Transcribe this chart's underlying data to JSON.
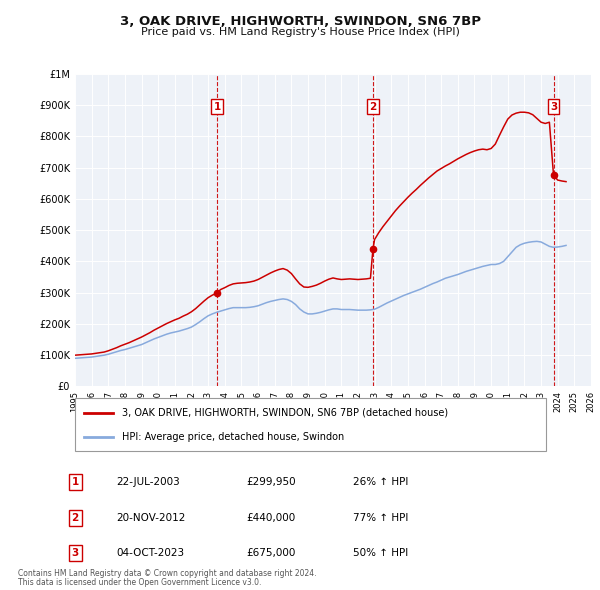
{
  "title": "3, OAK DRIVE, HIGHWORTH, SWINDON, SN6 7BP",
  "subtitle": "Price paid vs. HM Land Registry's House Price Index (HPI)",
  "background_color": "#ffffff",
  "plot_bg_color": "#eef2f8",
  "grid_color": "#ffffff",
  "ylim": [
    0,
    1000000
  ],
  "xlim_start": 1995,
  "xlim_end": 2026,
  "yticks": [
    0,
    100000,
    200000,
    300000,
    400000,
    500000,
    600000,
    700000,
    800000,
    900000,
    1000000
  ],
  "ytick_labels": [
    "£0",
    "£100K",
    "£200K",
    "£300K",
    "£400K",
    "£500K",
    "£600K",
    "£700K",
    "£800K",
    "£900K",
    "£1M"
  ],
  "xticks": [
    1995,
    1996,
    1997,
    1998,
    1999,
    2000,
    2001,
    2002,
    2003,
    2004,
    2005,
    2006,
    2007,
    2008,
    2009,
    2010,
    2011,
    2012,
    2013,
    2014,
    2015,
    2016,
    2017,
    2018,
    2019,
    2020,
    2021,
    2022,
    2023,
    2024,
    2025,
    2026
  ],
  "hpi_line_color": "#88aadd",
  "sale_line_color": "#cc0000",
  "sale_dot_color": "#cc0000",
  "vline_color": "#cc0000",
  "sale_events": [
    {
      "label": "1",
      "date_year": 2003.55,
      "price": 299950
    },
    {
      "label": "2",
      "date_year": 2012.9,
      "price": 440000
    },
    {
      "label": "3",
      "date_year": 2023.75,
      "price": 675000
    }
  ],
  "legend1_label": "3, OAK DRIVE, HIGHWORTH, SWINDON, SN6 7BP (detached house)",
  "legend2_label": "HPI: Average price, detached house, Swindon",
  "table_rows": [
    {
      "num": "1",
      "date": "22-JUL-2003",
      "price": "£299,950",
      "pct": "26% ↑ HPI"
    },
    {
      "num": "2",
      "date": "20-NOV-2012",
      "price": "£440,000",
      "pct": "77% ↑ HPI"
    },
    {
      "num": "3",
      "date": "04-OCT-2023",
      "price": "£675,000",
      "pct": "50% ↑ HPI"
    }
  ],
  "footnote1": "Contains HM Land Registry data © Crown copyright and database right 2024.",
  "footnote2": "This data is licensed under the Open Government Licence v3.0.",
  "hpi_data_x": [
    1995.0,
    1995.25,
    1995.5,
    1995.75,
    1996.0,
    1996.25,
    1996.5,
    1996.75,
    1997.0,
    1997.25,
    1997.5,
    1997.75,
    1998.0,
    1998.25,
    1998.5,
    1998.75,
    1999.0,
    1999.25,
    1999.5,
    1999.75,
    2000.0,
    2000.25,
    2000.5,
    2000.75,
    2001.0,
    2001.25,
    2001.5,
    2001.75,
    2002.0,
    2002.25,
    2002.5,
    2002.75,
    2003.0,
    2003.25,
    2003.5,
    2003.75,
    2004.0,
    2004.25,
    2004.5,
    2004.75,
    2005.0,
    2005.25,
    2005.5,
    2005.75,
    2006.0,
    2006.25,
    2006.5,
    2006.75,
    2007.0,
    2007.25,
    2007.5,
    2007.75,
    2008.0,
    2008.25,
    2008.5,
    2008.75,
    2009.0,
    2009.25,
    2009.5,
    2009.75,
    2010.0,
    2010.25,
    2010.5,
    2010.75,
    2011.0,
    2011.25,
    2011.5,
    2011.75,
    2012.0,
    2012.25,
    2012.5,
    2012.75,
    2013.0,
    2013.25,
    2013.5,
    2013.75,
    2014.0,
    2014.25,
    2014.5,
    2014.75,
    2015.0,
    2015.25,
    2015.5,
    2015.75,
    2016.0,
    2016.25,
    2016.5,
    2016.75,
    2017.0,
    2017.25,
    2017.5,
    2017.75,
    2018.0,
    2018.25,
    2018.5,
    2018.75,
    2019.0,
    2019.25,
    2019.5,
    2019.75,
    2020.0,
    2020.25,
    2020.5,
    2020.75,
    2021.0,
    2021.25,
    2021.5,
    2021.75,
    2022.0,
    2022.25,
    2022.5,
    2022.75,
    2023.0,
    2023.25,
    2023.5,
    2023.75,
    2024.0,
    2024.25,
    2024.5
  ],
  "hpi_data_y": [
    90000,
    91000,
    92000,
    93000,
    94000,
    96000,
    98000,
    100000,
    103000,
    107000,
    111000,
    115000,
    118000,
    122000,
    126000,
    130000,
    134000,
    140000,
    146000,
    152000,
    157000,
    162000,
    167000,
    171000,
    174000,
    177000,
    181000,
    185000,
    190000,
    198000,
    207000,
    217000,
    226000,
    232000,
    237000,
    241000,
    245000,
    249000,
    252000,
    252000,
    252000,
    252000,
    253000,
    255000,
    258000,
    263000,
    268000,
    272000,
    275000,
    278000,
    280000,
    278000,
    272000,
    262000,
    248000,
    238000,
    232000,
    232000,
    234000,
    237000,
    241000,
    245000,
    248000,
    248000,
    246000,
    246000,
    246000,
    245000,
    244000,
    244000,
    244000,
    245000,
    247000,
    253000,
    260000,
    267000,
    273000,
    279000,
    285000,
    291000,
    296000,
    301000,
    306000,
    311000,
    317000,
    323000,
    329000,
    334000,
    340000,
    346000,
    350000,
    354000,
    358000,
    363000,
    368000,
    372000,
    376000,
    380000,
    384000,
    387000,
    390000,
    390000,
    393000,
    400000,
    415000,
    430000,
    445000,
    453000,
    458000,
    461000,
    463000,
    464000,
    462000,
    455000,
    448000,
    445000,
    446000,
    448000,
    451000
  ],
  "sale_line_x": [
    1995.0,
    1995.25,
    1995.5,
    1995.75,
    1996.0,
    1996.25,
    1996.5,
    1996.75,
    1997.0,
    1997.25,
    1997.5,
    1997.75,
    1998.0,
    1998.25,
    1998.5,
    1998.75,
    1999.0,
    1999.25,
    1999.5,
    1999.75,
    2000.0,
    2000.25,
    2000.5,
    2000.75,
    2001.0,
    2001.25,
    2001.5,
    2001.75,
    2002.0,
    2002.25,
    2002.5,
    2002.75,
    2003.0,
    2003.25,
    2003.5,
    2003.55,
    2003.75,
    2004.0,
    2004.25,
    2004.5,
    2004.75,
    2005.0,
    2005.25,
    2005.5,
    2005.75,
    2006.0,
    2006.25,
    2006.5,
    2006.75,
    2007.0,
    2007.25,
    2007.5,
    2007.75,
    2008.0,
    2008.25,
    2008.5,
    2008.75,
    2009.0,
    2009.25,
    2009.5,
    2009.75,
    2010.0,
    2010.25,
    2010.5,
    2010.75,
    2011.0,
    2011.25,
    2011.5,
    2011.75,
    2012.0,
    2012.25,
    2012.5,
    2012.75,
    2012.9,
    2013.0,
    2013.25,
    2013.5,
    2013.75,
    2014.0,
    2014.25,
    2014.5,
    2014.75,
    2015.0,
    2015.25,
    2015.5,
    2015.75,
    2016.0,
    2016.25,
    2016.5,
    2016.75,
    2017.0,
    2017.25,
    2017.5,
    2017.75,
    2018.0,
    2018.25,
    2018.5,
    2018.75,
    2019.0,
    2019.25,
    2019.5,
    2019.75,
    2020.0,
    2020.25,
    2020.5,
    2020.75,
    2021.0,
    2021.25,
    2021.5,
    2021.75,
    2022.0,
    2022.25,
    2022.5,
    2022.75,
    2023.0,
    2023.25,
    2023.5,
    2023.75,
    2024.0,
    2024.25,
    2024.5
  ],
  "sale_line_y": [
    100000,
    101000,
    102000,
    103000,
    104000,
    106000,
    108000,
    110000,
    114000,
    119000,
    124000,
    130000,
    135000,
    140000,
    146000,
    152000,
    158000,
    165000,
    172000,
    180000,
    187000,
    194000,
    201000,
    207000,
    213000,
    218000,
    225000,
    231000,
    239000,
    249000,
    261000,
    273000,
    284000,
    292000,
    298000,
    299950,
    310000,
    316000,
    323000,
    328000,
    330000,
    331000,
    332000,
    334000,
    337000,
    342000,
    349000,
    356000,
    363000,
    369000,
    374000,
    377000,
    372000,
    361000,
    344000,
    328000,
    318000,
    317000,
    320000,
    324000,
    330000,
    337000,
    343000,
    347000,
    344000,
    342000,
    343000,
    344000,
    343000,
    342000,
    343000,
    344000,
    346000,
    440000,
    470000,
    492000,
    511000,
    528000,
    545000,
    562000,
    577000,
    591000,
    605000,
    618000,
    630000,
    643000,
    655000,
    667000,
    678000,
    689000,
    697000,
    705000,
    712000,
    720000,
    728000,
    735000,
    742000,
    748000,
    753000,
    757000,
    759000,
    757000,
    761000,
    775000,
    803000,
    830000,
    855000,
    868000,
    874000,
    877000,
    877000,
    875000,
    869000,
    857000,
    845000,
    841000,
    845000,
    675000,
    660000,
    657000,
    655000
  ]
}
